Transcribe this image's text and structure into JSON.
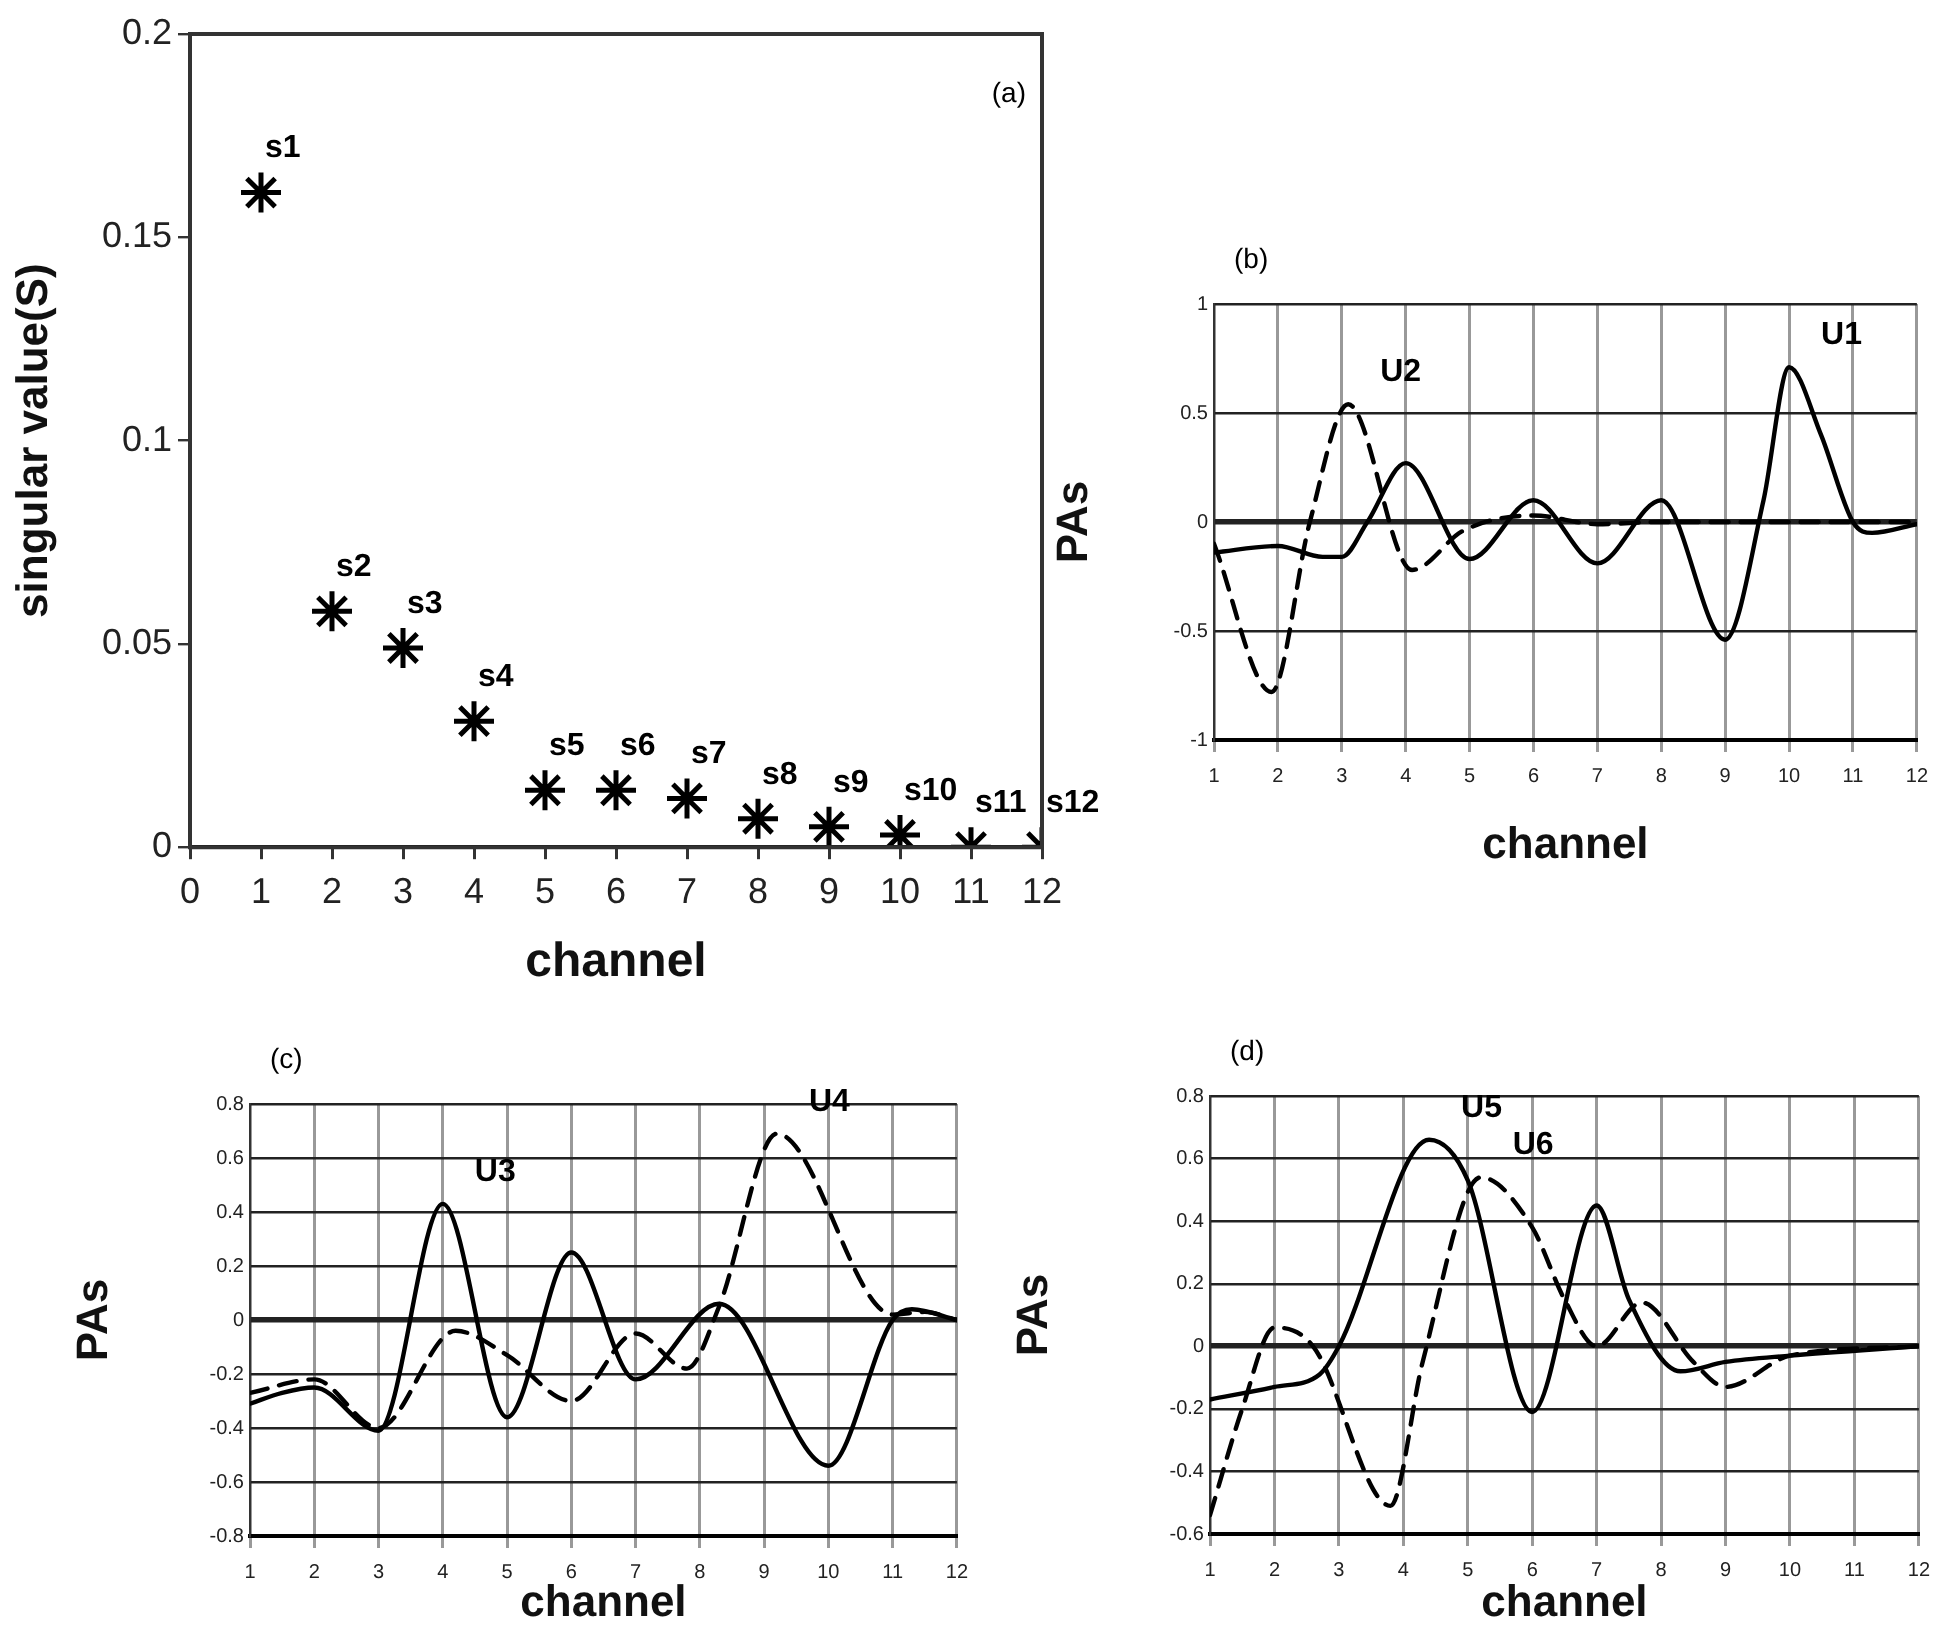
{
  "chart_data": [
    {
      "type": "scatter",
      "title": "(a)",
      "xlabel": "channel",
      "ylabel": "singular value(S)",
      "x": [
        1,
        2,
        3,
        4,
        5,
        6,
        7,
        8,
        9,
        10,
        11,
        12
      ],
      "values": [
        0.161,
        0.058,
        0.049,
        0.031,
        0.014,
        0.014,
        0.012,
        0.007,
        0.005,
        0.003,
        0,
        0
      ],
      "color": "#000000",
      "marker": "cross",
      "xlim": [
        0,
        12
      ],
      "xticks": [
        0,
        1,
        2,
        3,
        4,
        5,
        6,
        7,
        8,
        9,
        10,
        11,
        12
      ],
      "ylim": [
        0,
        0.2
      ],
      "yticks": [
        0,
        0.05,
        0.1,
        0.15,
        0.2
      ],
      "grid": false,
      "annotations": [
        {
          "text": "s1",
          "x": 1,
          "y": 0.161
        },
        {
          "text": "s2",
          "x": 2,
          "y": 0.058
        },
        {
          "text": "s3",
          "x": 3,
          "y": 0.049
        },
        {
          "text": "s4",
          "x": 4,
          "y": 0.031
        },
        {
          "text": "s5",
          "x": 5,
          "y": 0.014
        },
        {
          "text": "s6",
          "x": 6,
          "y": 0.014
        },
        {
          "text": "s7",
          "x": 7,
          "y": 0.012
        },
        {
          "text": "s8",
          "x": 8,
          "y": 0.007
        },
        {
          "text": "s9",
          "x": 9,
          "y": 0.005
        },
        {
          "text": "s10",
          "x": 10,
          "y": 0.003
        },
        {
          "text": "s11",
          "x": 11,
          "y": 0
        },
        {
          "text": "s12",
          "x": 12,
          "y": 0
        }
      ]
    },
    {
      "type": "line",
      "title": "(b)",
      "xlabel": "channel",
      "ylabel": "PAs",
      "marker": "none",
      "grid": true,
      "xlim": [
        1,
        12
      ],
      "xticks": [
        1,
        2,
        3,
        4,
        5,
        6,
        7,
        8,
        9,
        10,
        11,
        12
      ],
      "ylim": [
        -1,
        1
      ],
      "yticks": [
        -1,
        -0.5,
        0,
        0.5,
        1
      ],
      "series": [
        {
          "name": "U1",
          "color": "#000000",
          "line_style": "solid",
          "x": [
            1,
            2,
            2.7,
            3,
            3.4,
            4,
            5,
            6,
            7,
            8,
            9,
            9.6,
            10,
            10.5,
            11,
            11.3,
            12
          ],
          "values": [
            -0.14,
            -0.11,
            -0.16,
            -0.16,
            0,
            0.27,
            -0.17,
            0.1,
            -0.19,
            0.1,
            -0.54,
            0.1,
            0.71,
            0.4,
            0,
            -0.05,
            -0.01
          ]
        },
        {
          "name": "U2",
          "color": "#000000",
          "line_style": "dashed",
          "x": [
            1,
            1.9,
            2.5,
            3.1,
            4.1,
            4.9,
            6,
            7,
            8,
            12
          ],
          "values": [
            -0.1,
            -0.78,
            0,
            0.54,
            -0.22,
            -0.04,
            0.03,
            -0.01,
            0,
            0
          ]
        }
      ]
    },
    {
      "type": "line",
      "title": "(c)",
      "xlabel": "channel",
      "ylabel": "PAs",
      "marker": "none",
      "grid": true,
      "xlim": [
        1,
        12
      ],
      "xticks": [
        1,
        2,
        3,
        4,
        5,
        6,
        7,
        8,
        9,
        10,
        11,
        12
      ],
      "ylim": [
        -0.8,
        0.8
      ],
      "yticks": [
        -0.8,
        -0.6,
        -0.4,
        -0.2,
        0,
        0.2,
        0.4,
        0.6,
        0.8
      ],
      "series": [
        {
          "name": "U3",
          "color": "#000000",
          "line_style": "solid",
          "x": [
            1,
            1.5,
            2,
            3,
            4,
            5,
            6,
            7,
            8.3,
            10,
            11,
            11.3,
            12
          ],
          "values": [
            -0.31,
            -0.27,
            -0.25,
            -0.41,
            0.43,
            -0.36,
            0.25,
            -0.22,
            0.06,
            -0.54,
            0,
            0.04,
            0
          ]
        },
        {
          "name": "U4",
          "color": "#000000",
          "line_style": "dashed",
          "x": [
            1,
            2,
            3,
            4.2,
            5,
            6,
            7,
            7.8,
            8.3,
            9.2,
            11,
            11.5,
            12
          ],
          "values": [
            -0.27,
            -0.22,
            -0.4,
            -0.04,
            -0.13,
            -0.3,
            -0.05,
            -0.18,
            0.05,
            0.69,
            0.02,
            0.03,
            0
          ]
        }
      ]
    },
    {
      "type": "line",
      "title": "(d)",
      "xlabel": "channel",
      "ylabel": "PAs",
      "marker": "none",
      "grid": true,
      "xlim": [
        1,
        12
      ],
      "xticks": [
        1,
        2,
        3,
        4,
        5,
        6,
        7,
        8,
        9,
        10,
        11,
        12
      ],
      "ylim": [
        -0.6,
        0.8
      ],
      "yticks": [
        -0.6,
        -0.4,
        -0.2,
        0,
        0.2,
        0.4,
        0.6,
        0.8
      ],
      "series": [
        {
          "name": "U5",
          "color": "#000000",
          "line_style": "solid",
          "x": [
            1,
            2,
            2.7,
            3,
            4.4,
            5,
            6,
            7,
            7.5,
            8.3,
            9,
            10,
            12
          ],
          "values": [
            -0.17,
            -0.13,
            -0.09,
            0,
            0.66,
            0.53,
            -0.21,
            0.45,
            0.15,
            -0.08,
            -0.05,
            -0.03,
            0
          ]
        },
        {
          "name": "U6",
          "color": "#000000",
          "line_style": "dashed",
          "x": [
            1,
            1.5,
            2,
            2.6,
            3.8,
            4.3,
            5.2,
            6,
            6.5,
            7,
            7.7,
            8.5,
            9,
            10,
            12
          ],
          "values": [
            -0.54,
            -0.2,
            0.06,
            0,
            -0.51,
            -0.05,
            0.54,
            0.38,
            0.15,
            0,
            0.14,
            -0.05,
            -0.13,
            -0.03,
            0
          ]
        }
      ]
    }
  ]
}
